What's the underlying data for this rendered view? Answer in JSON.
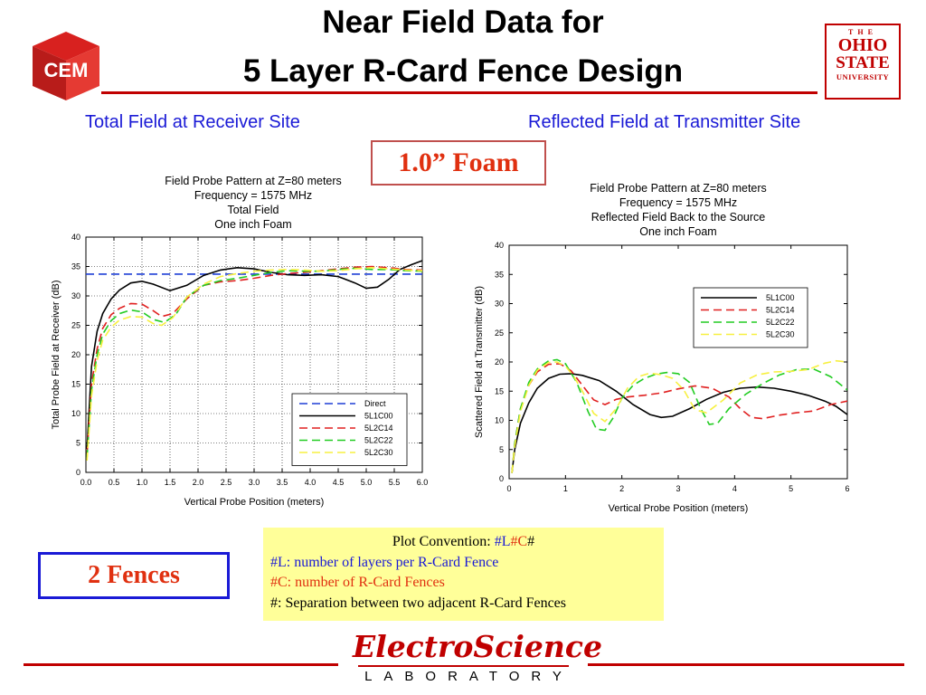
{
  "header": {
    "title_line1": "Near Field Data for",
    "title_line2": "5 Layer R-Card Fence Design",
    "left_logo_text": "CEM",
    "osu_logo_text": "THE OHIO STATE UNIVERSITY"
  },
  "subheads": {
    "left": "Total Field at Receiver Site",
    "right": "Reflected Field at Transmitter Site"
  },
  "foam_label": "1.0” Foam",
  "fences_label": "2 Fences",
  "convention": {
    "heading": "Plot Convention: ",
    "heading_l": "#L",
    "heading_c": "#C",
    "heading_hash": "#",
    "line_l": "#L: number of layers per R-Card Fence",
    "line_c": "#C: number of R-Card Fences",
    "line_sep": "#: Separation between two adjacent R-Card Fences"
  },
  "footer": {
    "logo_main": "ElectroScience",
    "logo_sub": "LABORATORY"
  },
  "colors": {
    "title_red": "#c00000",
    "accent_blue": "#1a1ad6",
    "accent_red": "#e03010",
    "note_bg": "#ffff99"
  },
  "chart_data": [
    {
      "type": "line",
      "title": "Field Probe Pattern at Z=80 meters",
      "title_lines": [
        "Field Probe Pattern at Z=80 meters",
        "Frequency = 1575 MHz",
        "Total Field",
        "One inch Foam"
      ],
      "xlabel": "Vertical Probe Position (meters)",
      "ylabel": "Total Probe Field at Receiver (dB)",
      "xlim": [
        0,
        6
      ],
      "ylim": [
        0,
        40
      ],
      "xticks": [
        "0.0",
        "0.5",
        "1.0",
        "1.5",
        "2.0",
        "2.5",
        "3.0",
        "3.5",
        "4.0",
        "4.5",
        "5.0",
        "5.5",
        "6.0"
      ],
      "yticks": [
        "0",
        "5",
        "10",
        "15",
        "20",
        "25",
        "30",
        "35",
        "40"
      ],
      "legend_position": "bottom-right",
      "grid": true,
      "series": [
        {
          "name": "Direct",
          "color": "#1f3fd6",
          "dash": "dashed",
          "x": [
            0,
            6
          ],
          "y": [
            33.7,
            33.7
          ]
        },
        {
          "name": "5L1C00",
          "color": "#000000",
          "dash": "solid",
          "x": [
            0.02,
            0.1,
            0.2,
            0.3,
            0.45,
            0.6,
            0.8,
            1.0,
            1.2,
            1.5,
            1.8,
            2.1,
            2.4,
            2.7,
            3.0,
            3.3,
            3.6,
            3.9,
            4.2,
            4.5,
            4.8,
            5.0,
            5.2,
            5.4,
            5.6,
            5.8,
            6.0
          ],
          "y": [
            4,
            18,
            24,
            27,
            29.5,
            31,
            32.2,
            32.5,
            32,
            30.9,
            31.8,
            33.5,
            34.4,
            34.8,
            34.6,
            34,
            33.6,
            33.5,
            33.6,
            33.3,
            32.2,
            31.3,
            31.5,
            32.8,
            34.5,
            35.3,
            36
          ]
        },
        {
          "name": "5L2C14",
          "color": "#e02020",
          "dash": "dashed",
          "x": [
            0.02,
            0.1,
            0.2,
            0.3,
            0.45,
            0.6,
            0.8,
            1.0,
            1.2,
            1.35,
            1.55,
            1.8,
            2.1,
            2.4,
            2.7,
            3.0,
            3.3,
            3.6,
            3.9,
            4.2,
            4.5,
            4.8,
            5.1,
            5.4,
            5.7,
            6.0
          ],
          "y": [
            3,
            15,
            21,
            24.5,
            26.8,
            27.9,
            28.7,
            28.6,
            27.5,
            26.5,
            27,
            29.5,
            31.8,
            32.4,
            32.6,
            33,
            33.5,
            33.8,
            34,
            34.3,
            34.6,
            34.9,
            35,
            34.8,
            34.5,
            34.4
          ]
        },
        {
          "name": "5L2C22",
          "color": "#22cc22",
          "dash": "dashed",
          "x": [
            0.02,
            0.1,
            0.2,
            0.3,
            0.45,
            0.6,
            0.8,
            1.0,
            1.2,
            1.4,
            1.6,
            1.8,
            2.1,
            2.4,
            2.7,
            3.0,
            3.3,
            3.6,
            3.9,
            4.2,
            4.5,
            4.8,
            5.1,
            5.4,
            5.7,
            6.0
          ],
          "y": [
            2.5,
            14,
            20,
            23.5,
            25.8,
            27,
            27.6,
            27.3,
            26,
            25.5,
            26.8,
            29.8,
            31.8,
            32.6,
            33,
            33.5,
            34,
            34.3,
            34.2,
            34.2,
            34.5,
            34.7,
            34.5,
            34.5,
            34.3,
            34.2
          ]
        },
        {
          "name": "5L2C30",
          "color": "#f7f040",
          "dash": "dashed",
          "x": [
            0.02,
            0.1,
            0.2,
            0.3,
            0.45,
            0.6,
            0.8,
            1.0,
            1.2,
            1.35,
            1.55,
            1.8,
            2.1,
            2.4,
            2.7,
            3.0,
            3.3,
            3.6,
            3.9,
            4.2,
            4.5,
            4.8,
            5.1,
            5.4,
            5.7,
            6.0
          ],
          "y": [
            2,
            13,
            19,
            22.5,
            24.7,
            25.9,
            26.5,
            26.4,
            25.3,
            25,
            26.3,
            29.8,
            32,
            33.3,
            33.8,
            34.2,
            34.4,
            34.5,
            34.4,
            34.2,
            34.3,
            34.6,
            34.8,
            34.6,
            34.4,
            34.3
          ]
        }
      ]
    },
    {
      "type": "line",
      "title": "Field Probe Pattern at Z=80 meters",
      "title_lines": [
        "Field Probe Pattern at Z=80 meters",
        "Frequency = 1575 MHz",
        "Reflected Field Back to the Source",
        "One inch Foam"
      ],
      "xlabel": "Vertical Probe Position (meters)",
      "ylabel": "Scattered Field at Transmitter (dB)",
      "xlim": [
        0,
        6
      ],
      "ylim": [
        0,
        40
      ],
      "xticks": [
        "0",
        "1",
        "2",
        "3",
        "4",
        "5",
        "6"
      ],
      "yticks": [
        "0",
        "5",
        "10",
        "15",
        "20",
        "25",
        "30",
        "35",
        "40"
      ],
      "legend_position": "top-right",
      "grid": false,
      "series": [
        {
          "name": "5L1C00",
          "color": "#000000",
          "dash": "solid",
          "x": [
            0.05,
            0.1,
            0.2,
            0.35,
            0.5,
            0.7,
            0.9,
            1.1,
            1.3,
            1.6,
            1.9,
            2.2,
            2.5,
            2.7,
            2.9,
            3.2,
            3.5,
            3.8,
            4.1,
            4.4,
            4.7,
            5.0,
            5.3,
            5.6,
            5.8,
            6.0
          ],
          "y": [
            1,
            5,
            9.5,
            13,
            15.5,
            17.2,
            17.9,
            18,
            17.7,
            16.8,
            15,
            12.7,
            11,
            10.5,
            10.7,
            12,
            13.6,
            14.8,
            15.5,
            15.7,
            15.5,
            15,
            14.3,
            13.3,
            12.4,
            11
          ]
        },
        {
          "name": "5L2C14",
          "color": "#e02020",
          "dash": "dashed",
          "x": [
            0.05,
            0.1,
            0.2,
            0.35,
            0.5,
            0.7,
            0.9,
            1.1,
            1.3,
            1.5,
            1.7,
            1.9,
            2.1,
            2.4,
            2.7,
            3.0,
            3.3,
            3.6,
            3.9,
            4.1,
            4.3,
            4.5,
            4.8,
            5.1,
            5.4,
            5.7,
            6.0
          ],
          "y": [
            1,
            6,
            12,
            16,
            18.3,
            19.6,
            19.7,
            18.5,
            16,
            13.5,
            12.7,
            13.6,
            14,
            14.3,
            14.7,
            15.4,
            15.9,
            15.5,
            14,
            12,
            10.5,
            10.3,
            10.9,
            11.3,
            11.6,
            12.7,
            13.3
          ]
        },
        {
          "name": "5L2C22",
          "color": "#22cc22",
          "dash": "dashed",
          "x": [
            0.05,
            0.1,
            0.2,
            0.35,
            0.5,
            0.7,
            0.85,
            1.0,
            1.2,
            1.4,
            1.55,
            1.7,
            1.85,
            2.0,
            2.2,
            2.4,
            2.6,
            2.8,
            3.0,
            3.2,
            3.4,
            3.55,
            3.7,
            3.9,
            4.2,
            4.5,
            4.8,
            5.1,
            5.4,
            5.7,
            6.0
          ],
          "y": [
            1,
            6,
            12,
            16.5,
            18.8,
            20.2,
            20.4,
            19.7,
            16.5,
            11.5,
            8.5,
            8.3,
            10.5,
            13.8,
            16,
            17.2,
            17.9,
            18.2,
            18,
            16.5,
            12,
            9.3,
            9.5,
            12,
            14.5,
            16.3,
            17.8,
            18.7,
            18.8,
            17.5,
            15.2
          ]
        },
        {
          "name": "5L2C30",
          "color": "#f7f040",
          "dash": "dashed",
          "x": [
            0.05,
            0.1,
            0.2,
            0.35,
            0.5,
            0.7,
            0.85,
            1.0,
            1.15,
            1.3,
            1.5,
            1.7,
            1.9,
            2.1,
            2.3,
            2.5,
            2.7,
            2.9,
            3.1,
            3.3,
            3.5,
            3.8,
            4.1,
            4.4,
            4.7,
            5.0,
            5.3,
            5.6,
            5.8,
            6.0
          ],
          "y": [
            1,
            5.5,
            11.5,
            16,
            18.6,
            19.9,
            20,
            19.3,
            17.5,
            15,
            11.2,
            9.8,
            12,
            15.5,
            17.5,
            18.1,
            17.8,
            17.2,
            15.2,
            11.8,
            11.3,
            13.5,
            16.4,
            17.8,
            18.3,
            18.4,
            18.7,
            19.8,
            20.2,
            20
          ]
        }
      ]
    }
  ]
}
